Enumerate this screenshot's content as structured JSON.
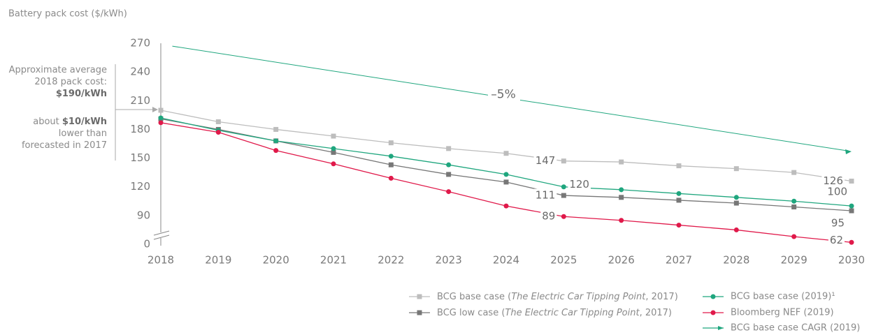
{
  "chart_data": {
    "type": "line",
    "title": "Battery pack cost ($/kWh)",
    "xlim": [
      2018,
      2030
    ],
    "xticks": [
      2018,
      2019,
      2020,
      2021,
      2022,
      2023,
      2024,
      2025,
      2026,
      2027,
      2028,
      2029,
      2030
    ],
    "ylim": [
      60,
      270
    ],
    "yticks": [
      0,
      90,
      120,
      150,
      180,
      210,
      240,
      270
    ],
    "axis_break": true,
    "annotation": [
      [
        [
          {
            "text": "Approximate average"
          }
        ],
        [
          {
            "text": "2018 pack cost:"
          }
        ],
        [
          {
            "text": "$190/kWh",
            "bold": true
          }
        ]
      ],
      [
        [
          {
            "text": "about "
          },
          {
            "text": "$10/kWh",
            "bold": true
          }
        ],
        [
          {
            "text": "lower than"
          }
        ],
        [
          {
            "text": "forecasted in 2017"
          }
        ]
      ]
    ],
    "series": [
      {
        "name": "BCG base case (The Electric Car Tipping Point, 2017)",
        "italic": "The Electric Car Tipping Point",
        "color": "#bdbdbd",
        "marker": "square",
        "x": [
          2018,
          2019,
          2020,
          2021,
          2022,
          2023,
          2024,
          2025,
          2026,
          2027,
          2028,
          2029,
          2030
        ],
        "values": [
          200,
          188,
          180,
          173,
          166,
          160,
          155,
          147,
          146,
          142,
          139,
          135,
          126
        ],
        "value_labels": [
          null,
          null,
          null,
          null,
          null,
          null,
          null,
          "147",
          null,
          null,
          null,
          null,
          "126"
        ]
      },
      {
        "name": "BCG low case (The Electric Car Tipping Point, 2017)",
        "italic": "The Electric Car Tipping Point",
        "color": "#777777",
        "marker": "square",
        "x": [
          2018,
          2019,
          2020,
          2021,
          2022,
          2023,
          2024,
          2025,
          2026,
          2027,
          2028,
          2029,
          2030
        ],
        "values": [
          191,
          180,
          168,
          156,
          143,
          133,
          125,
          111,
          109,
          106,
          103,
          99,
          95
        ],
        "value_labels": [
          null,
          null,
          null,
          null,
          null,
          null,
          null,
          "111",
          null,
          null,
          null,
          null,
          "95"
        ]
      },
      {
        "name": "BCG base case (2019)¹",
        "color": "#1fa67e",
        "marker": "circle",
        "x": [
          2018,
          2019,
          2020,
          2021,
          2022,
          2023,
          2024,
          2025,
          2026,
          2027,
          2028,
          2029,
          2030
        ],
        "values": [
          192,
          179,
          168,
          160,
          152,
          143,
          133,
          120,
          117,
          113,
          109,
          105,
          100
        ],
        "value_labels": [
          null,
          null,
          null,
          null,
          null,
          null,
          null,
          "120",
          null,
          null,
          null,
          null,
          "100"
        ]
      },
      {
        "name": "Bloomberg NEF (2019)",
        "color": "#e0194a",
        "marker": "circle",
        "x": [
          2018,
          2019,
          2020,
          2021,
          2022,
          2023,
          2024,
          2025,
          2026,
          2027,
          2028,
          2029,
          2030
        ],
        "values": [
          187,
          177,
          158,
          144,
          129,
          115,
          100,
          89,
          85,
          80,
          75,
          68,
          62
        ],
        "value_labels": [
          null,
          null,
          null,
          null,
          null,
          null,
          null,
          "89",
          null,
          null,
          null,
          null,
          "62"
        ]
      },
      {
        "name": "BCG base case CAGR (2019)",
        "color": "#1fa67e",
        "marker": "arrow",
        "label": "–5%",
        "x": [
          2018.2,
          2030
        ],
        "values": [
          267,
          157
        ]
      }
    ]
  }
}
